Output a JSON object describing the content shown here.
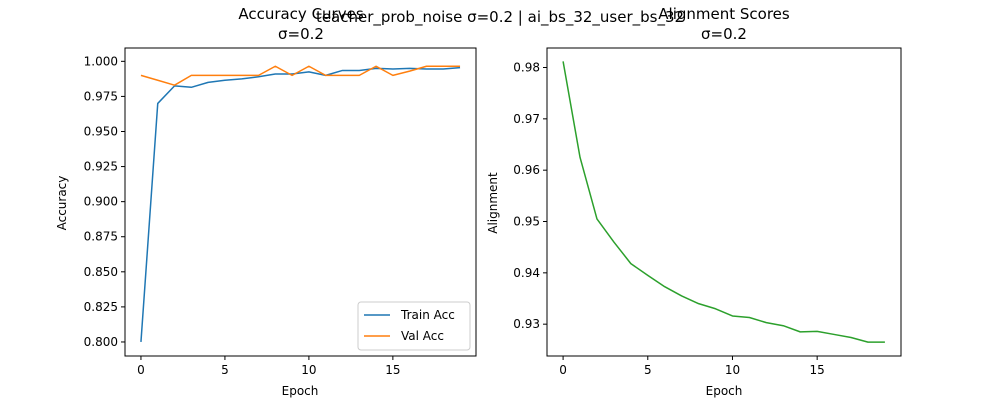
{
  "suptitle": "teacher_prob_noise σ=0.2 | ai_bs_32_user_bs_32",
  "chart_data": [
    {
      "type": "line",
      "title_line1": "Accuracy Curves",
      "title_line2": "σ=0.2",
      "xlabel": "Epoch",
      "ylabel": "Accuracy",
      "xlim": [
        -0.95,
        19.95
      ],
      "ylim": [
        0.79,
        1.0095
      ],
      "xticks": [
        0,
        5,
        10,
        15
      ],
      "yticks": [
        0.8,
        0.825,
        0.85,
        0.875,
        0.9,
        0.925,
        0.95,
        0.975,
        1.0
      ],
      "ytick_labels": [
        "0.800",
        "0.825",
        "0.850",
        "0.875",
        "0.900",
        "0.925",
        "0.950",
        "0.975",
        "1.000"
      ],
      "legend": "lower-right",
      "grid": false,
      "x": [
        0,
        1,
        2,
        3,
        4,
        5,
        6,
        7,
        8,
        9,
        10,
        11,
        12,
        13,
        14,
        15,
        16,
        17,
        18,
        19
      ],
      "series": [
        {
          "name": "Train Acc",
          "color": "#1f77b4",
          "values": [
            0.8,
            0.97,
            0.9825,
            0.9815,
            0.985,
            0.9865,
            0.9875,
            0.989,
            0.991,
            0.991,
            0.9925,
            0.99,
            0.9935,
            0.9935,
            0.995,
            0.9945,
            0.995,
            0.9945,
            0.9945,
            0.9955
          ]
        },
        {
          "name": "Val Acc",
          "color": "#ff7f0e",
          "values": [
            0.99,
            0.9865,
            0.983,
            0.99,
            0.99,
            0.99,
            0.99,
            0.99,
            0.9965,
            0.99,
            0.9965,
            0.99,
            0.99,
            0.99,
            0.9965,
            0.99,
            0.993,
            0.9965,
            0.9965,
            0.9965
          ]
        }
      ]
    },
    {
      "type": "line",
      "title_line1": "Alignment Scores",
      "title_line2": "σ=0.2",
      "xlabel": "Epoch",
      "ylabel": "Alignment",
      "xlim": [
        -0.95,
        19.95
      ],
      "ylim": [
        0.9238,
        0.9838
      ],
      "xticks": [
        0,
        5,
        10,
        15
      ],
      "yticks": [
        0.93,
        0.94,
        0.95,
        0.96,
        0.97,
        0.98
      ],
      "ytick_labels": [
        "0.93",
        "0.94",
        "0.95",
        "0.96",
        "0.97",
        "0.98"
      ],
      "grid": false,
      "x": [
        0,
        1,
        2,
        3,
        4,
        5,
        6,
        7,
        8,
        9,
        10,
        11,
        12,
        13,
        14,
        15,
        16,
        17,
        18,
        19
      ],
      "series": [
        {
          "color": "#2ca02c",
          "values": [
            0.9812,
            0.9625,
            0.9505,
            0.946,
            0.9418,
            0.9395,
            0.9373,
            0.9355,
            0.934,
            0.933,
            0.9316,
            0.9313,
            0.9303,
            0.9297,
            0.9285,
            0.9286,
            0.928,
            0.9274,
            0.9265,
            0.9265
          ]
        }
      ]
    }
  ]
}
